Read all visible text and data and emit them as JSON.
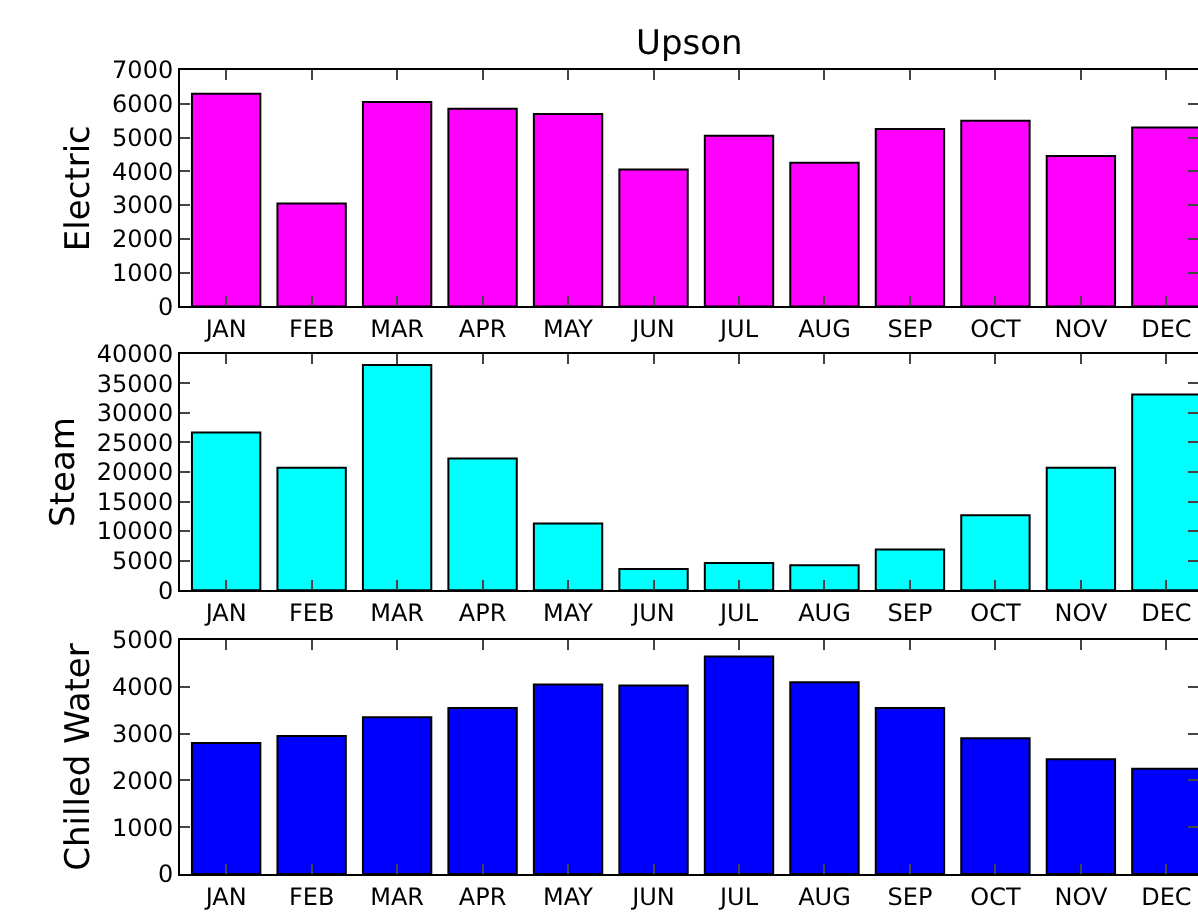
{
  "chart_data": [
    {
      "type": "bar",
      "title": "Upson",
      "ylabel": "Electric",
      "categories": [
        "JAN",
        "FEB",
        "MAR",
        "APR",
        "MAY",
        "JUN",
        "JUL",
        "AUG",
        "SEP",
        "OCT",
        "NOV",
        "DEC"
      ],
      "color": "#ff00ff",
      "values": [
        6300,
        3050,
        6050,
        5850,
        5700,
        4050,
        5050,
        4250,
        5250,
        5500,
        4450,
        5300
      ],
      "ylim": [
        0,
        7000
      ],
      "yticks": [
        0,
        1000,
        2000,
        3000,
        4000,
        5000,
        6000,
        7000
      ]
    },
    {
      "type": "bar",
      "ylabel": "Steam",
      "categories": [
        "JAN",
        "FEB",
        "MAR",
        "APR",
        "MAY",
        "JUN",
        "JUL",
        "AUG",
        "SEP",
        "OCT",
        "NOV",
        "DEC"
      ],
      "color": "#00ffff",
      "values": [
        26700,
        20700,
        38100,
        22300,
        11300,
        3600,
        4600,
        4200,
        6900,
        12700,
        20700,
        33100
      ],
      "ylim": [
        0,
        40000
      ],
      "yticks": [
        0,
        5000,
        10000,
        15000,
        20000,
        25000,
        30000,
        35000,
        40000
      ]
    },
    {
      "type": "bar",
      "ylabel": "Chilled Water",
      "categories": [
        "JAN",
        "FEB",
        "MAR",
        "APR",
        "MAY",
        "JUN",
        "JUL",
        "AUG",
        "SEP",
        "OCT",
        "NOV",
        "DEC"
      ],
      "color": "#0000ff",
      "values": [
        2800,
        2950,
        3350,
        3550,
        4050,
        4030,
        4650,
        4100,
        3550,
        2900,
        2450,
        2250
      ],
      "ylim": [
        0,
        5000
      ],
      "yticks": [
        0,
        1000,
        2000,
        3000,
        4000,
        5000
      ]
    }
  ]
}
